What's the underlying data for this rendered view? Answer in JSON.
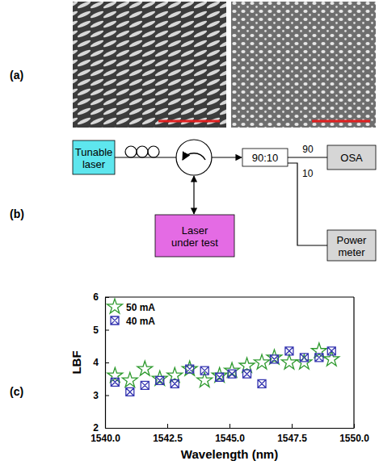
{
  "panel_labels": [
    "(a)",
    "(b)",
    "(c)"
  ],
  "diagram": {
    "nodes": [
      {
        "label": [
          "Tunable",
          "laser"
        ]
      },
      {
        "label": [
          "Laser",
          "under test"
        ]
      },
      {
        "label": [
          "90:10"
        ]
      },
      {
        "label": [
          "OSA"
        ]
      },
      {
        "label": [
          "Power",
          "meter"
        ]
      }
    ],
    "ports": [
      "90",
      "10"
    ]
  },
  "chart_data": {
    "type": "scatter",
    "x_label": "Wavelength (nm)",
    "y_label": "LBF",
    "x": [
      1540.4,
      1541.0,
      1541.6,
      1542.2,
      1542.8,
      1543.4,
      1544.0,
      1544.6,
      1545.1,
      1545.7,
      1546.3,
      1546.8,
      1547.4,
      1548.0,
      1548.6,
      1549.1
    ],
    "series": [
      {
        "name": "50 mA",
        "color": "#2e9a2e",
        "marker": "star",
        "values": [
          3.6,
          3.45,
          3.8,
          3.5,
          3.6,
          3.8,
          3.45,
          3.6,
          3.75,
          3.9,
          4.0,
          4.15,
          4.0,
          4.0,
          4.35,
          4.1
        ]
      },
      {
        "name": "40 mA",
        "color": "#3535b0",
        "marker": "square-x",
        "values": [
          3.4,
          3.1,
          3.3,
          3.45,
          3.35,
          3.8,
          3.75,
          3.55,
          3.65,
          3.65,
          3.35,
          4.1,
          4.35,
          4.15,
          4.15,
          4.35
        ]
      }
    ],
    "xlim": [
      1540,
      1550
    ],
    "xticks": [
      {
        "value": 1540,
        "label": "1540.0"
      },
      {
        "value": 1542.5,
        "label": "1542.5"
      },
      {
        "value": 1545,
        "label": "1545.0"
      },
      {
        "value": 1547.5,
        "label": "1547.5"
      },
      {
        "value": 1550,
        "label": "1550.0"
      }
    ],
    "ylim": [
      2,
      6
    ],
    "yticks": [
      2,
      3,
      4,
      5,
      6
    ],
    "legend": "upper left",
    "grid": false
  }
}
